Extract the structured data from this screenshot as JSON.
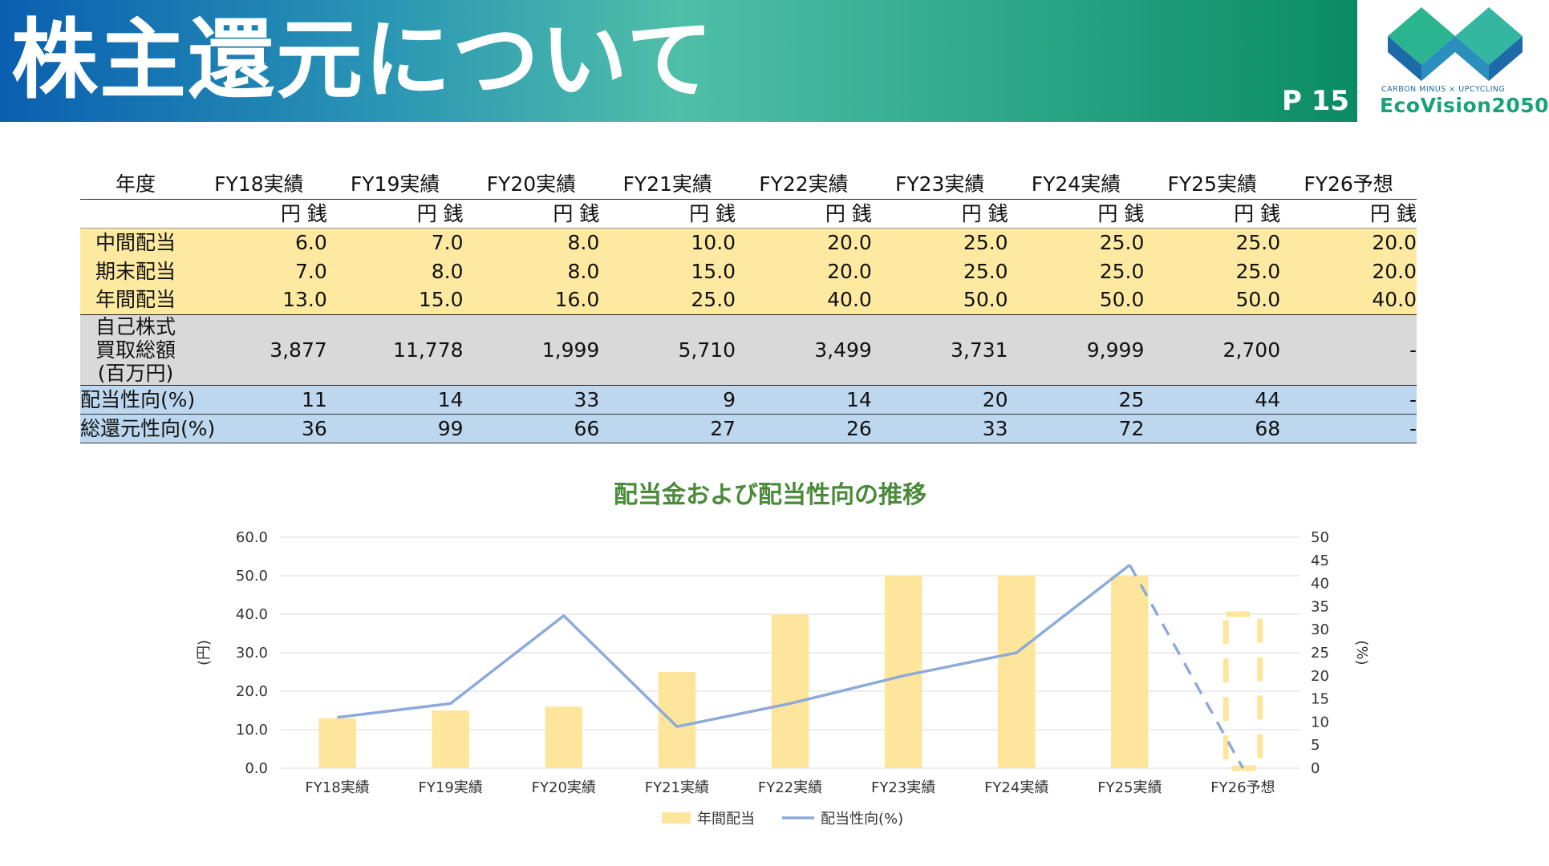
{
  "header": {
    "title": "株主還元について",
    "page": "P 15",
    "logo_tagline": "CARBON MINUS × UPCYCLING",
    "logo_name": "EcoVision2050"
  },
  "table": {
    "columns": [
      "年度",
      "FY18実績",
      "FY19実績",
      "FY20実績",
      "FY21実績",
      "FY22実績",
      "FY23実績",
      "FY24実績",
      "FY25実績",
      "FY26予想"
    ],
    "unit_label": "円 銭",
    "rows": [
      {
        "label": "中間配当",
        "values": [
          "6.0",
          "7.0",
          "8.0",
          "10.0",
          "20.0",
          "25.0",
          "25.0",
          "25.0",
          "20.0"
        ]
      },
      {
        "label": "期末配当",
        "values": [
          "7.0",
          "8.0",
          "8.0",
          "15.0",
          "20.0",
          "25.0",
          "25.0",
          "25.0",
          "20.0"
        ]
      },
      {
        "label": "年間配当",
        "values": [
          "13.0",
          "15.0",
          "16.0",
          "25.0",
          "40.0",
          "50.0",
          "50.0",
          "50.0",
          "40.0"
        ]
      },
      {
        "label_lines": [
          "自己株式",
          "買取総額",
          "(百万円)"
        ],
        "values": [
          "3,877",
          "11,778",
          "1,999",
          "5,710",
          "3,499",
          "3,731",
          "9,999",
          "2,700",
          "-"
        ]
      },
      {
        "label": "配当性向(%)",
        "values": [
          "11",
          "14",
          "33",
          "9",
          "14",
          "20",
          "25",
          "44",
          "-"
        ]
      },
      {
        "label": "総還元性向(%)",
        "values": [
          "36",
          "99",
          "66",
          "27",
          "26",
          "33",
          "72",
          "68",
          "-"
        ]
      }
    ]
  },
  "chart_data": {
    "type": "bar",
    "title": "配当金および配当性向の推移",
    "categories": [
      "FY18実績",
      "FY19実績",
      "FY20実績",
      "FY21実績",
      "FY22実績",
      "FY23実績",
      "FY24実績",
      "FY25実績",
      "FY26予想"
    ],
    "series": [
      {
        "name": "年間配当",
        "type": "bar",
        "axis": "left",
        "values": [
          13.0,
          15.0,
          16.0,
          25.0,
          40.0,
          50.0,
          50.0,
          50.0,
          40.0
        ],
        "color": "#fde69b",
        "forecast_index": 8
      },
      {
        "name": "配当性向(%)",
        "type": "line",
        "axis": "right",
        "values": [
          11,
          14,
          33,
          9,
          14,
          20,
          25,
          44,
          0
        ],
        "color": "#8eaadb",
        "dashed_from_index": 7
      }
    ],
    "ylabel": "(円)",
    "y2label": "(%)",
    "ylim": [
      0,
      60
    ],
    "y2lim": [
      0,
      50
    ],
    "yticks": [
      "0.0",
      "10.0",
      "20.0",
      "30.0",
      "40.0",
      "50.0",
      "60.0"
    ],
    "y2ticks": [
      "0",
      "5",
      "10",
      "15",
      "20",
      "25",
      "30",
      "35",
      "40",
      "45",
      "50"
    ],
    "grid": true,
    "legend": "bottom"
  }
}
